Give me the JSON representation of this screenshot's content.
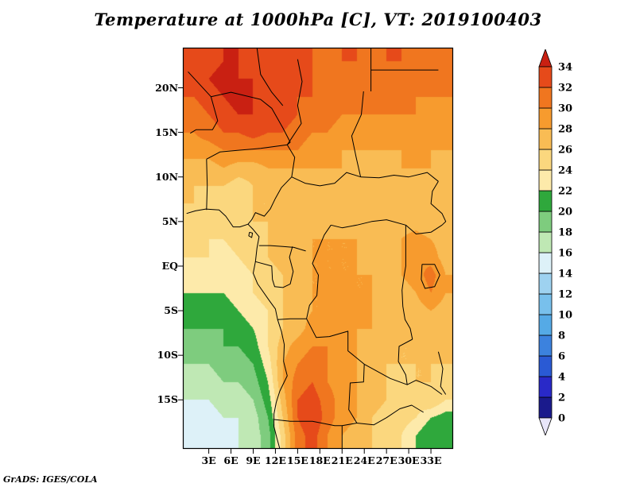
{
  "title": "Temperature at 1000hPa [C], VT: 2019100403",
  "credit": "GrADS: IGES/COLA",
  "axes": {
    "lat_ticks": [
      {
        "label": "20N",
        "lat": 20
      },
      {
        "label": "15N",
        "lat": 15
      },
      {
        "label": "10N",
        "lat": 10
      },
      {
        "label": "5N",
        "lat": 5
      },
      {
        "label": "EQ",
        "lat": 0
      },
      {
        "label": "5S",
        "lat": -5
      },
      {
        "label": "10S",
        "lat": -10
      },
      {
        "label": "15S",
        "lat": -15
      }
    ],
    "lon_ticks": [
      {
        "label": "3E",
        "lon": 3
      },
      {
        "label": "6E",
        "lon": 6
      },
      {
        "label": "9E",
        "lon": 9
      },
      {
        "label": "12E",
        "lon": 12
      },
      {
        "label": "15E",
        "lon": 15
      },
      {
        "label": "18E",
        "lon": 18
      },
      {
        "label": "21E",
        "lon": 21
      },
      {
        "label": "24E",
        "lon": 24
      },
      {
        "label": "27E",
        "lon": 27
      },
      {
        "label": "30E",
        "lon": 30
      },
      {
        "label": "33E",
        "lon": 33
      }
    ]
  },
  "chart_data": {
    "type": "heatmap",
    "title": "Temperature at 1000hPa [C], VT: 2019100403",
    "units": "C",
    "contour_interval": 2,
    "levels": [
      0,
      2,
      4,
      6,
      8,
      10,
      12,
      14,
      16,
      18,
      20,
      22,
      24,
      26,
      28,
      30,
      32,
      34
    ],
    "palette": {
      "under": "#e8e6fa",
      "bands": [
        "#1a1a8c",
        "#2929c8",
        "#2a5ad4",
        "#3c82de",
        "#55aae6",
        "#78c0ec",
        "#9ed2f0",
        "#ddf1f8",
        "#bfe8b4",
        "#7ecc7e",
        "#2fa83c",
        "#fdeaaa",
        "#fbd77e",
        "#f9bc54",
        "#f79b2e",
        "#f0761f",
        "#e64a1a"
      ],
      "over": "#c92012"
    },
    "lon_range": [
      -0.5,
      36.0
    ],
    "lat_range": [
      -20.5,
      24.5
    ],
    "grid_lons": [
      1,
      3,
      5,
      7,
      9,
      11,
      13,
      15,
      17,
      19,
      21,
      23,
      25,
      27,
      29,
      31,
      33,
      35
    ],
    "grid_lats": [
      23,
      21,
      19,
      17,
      15,
      13,
      11,
      9,
      7,
      5,
      3,
      1,
      -1,
      -3,
      -5,
      -7,
      -9,
      -11,
      -13,
      -15,
      -17,
      -19
    ],
    "values": [
      [
        32,
        33,
        34,
        34,
        33,
        32,
        32,
        33,
        32,
        31,
        32,
        32,
        31,
        32,
        32,
        31,
        32,
        31
      ],
      [
        33,
        34,
        35,
        34,
        34,
        33,
        34,
        33,
        32,
        32,
        31,
        32,
        31,
        31,
        32,
        31,
        31,
        30
      ],
      [
        32,
        33,
        34,
        35,
        34,
        34,
        33,
        32,
        32,
        31,
        31,
        31,
        30,
        31,
        31,
        30,
        30,
        30
      ],
      [
        31,
        32,
        33,
        34,
        34,
        33,
        33,
        32,
        31,
        31,
        30,
        30,
        30,
        30,
        30,
        30,
        29,
        30
      ],
      [
        30,
        31,
        32,
        32,
        33,
        32,
        32,
        31,
        30,
        30,
        29,
        29,
        29,
        29,
        29,
        29,
        29,
        29
      ],
      [
        29,
        29,
        30,
        30,
        30,
        30,
        30,
        30,
        29,
        29,
        28,
        28,
        28,
        28,
        28,
        29,
        28,
        28
      ],
      [
        27,
        27,
        28,
        27,
        27,
        28,
        28,
        28,
        28,
        28,
        28,
        27,
        27,
        27,
        28,
        28,
        28,
        27
      ],
      [
        26,
        26,
        26,
        25,
        26,
        27,
        27,
        27,
        27,
        27,
        27,
        27,
        27,
        27,
        27,
        28,
        27,
        27
      ],
      [
        26,
        25,
        25,
        25,
        26,
        26,
        27,
        27,
        27,
        27,
        27,
        27,
        27,
        26,
        27,
        27,
        27,
        26
      ],
      [
        25,
        25,
        24,
        25,
        26,
        26,
        26,
        27,
        27,
        27,
        27,
        27,
        26,
        26,
        27,
        27,
        26,
        26
      ],
      [
        25,
        24,
        24,
        25,
        25,
        26,
        27,
        27,
        28,
        28,
        28,
        28,
        27,
        27,
        28,
        29,
        28,
        27
      ],
      [
        24,
        24,
        23,
        24,
        25,
        26,
        27,
        28,
        28,
        28,
        28,
        28,
        27,
        27,
        28,
        30,
        29,
        27
      ],
      [
        23,
        23,
        23,
        23,
        24,
        25,
        26,
        27,
        28,
        28,
        28,
        28,
        28,
        27,
        28,
        29,
        31,
        28
      ],
      [
        22,
        22,
        22,
        23,
        24,
        25,
        26,
        27,
        28,
        28,
        29,
        28,
        28,
        27,
        27,
        28,
        30,
        28
      ],
      [
        21,
        21,
        21,
        22,
        23,
        24,
        26,
        27,
        28,
        28,
        29,
        29,
        28,
        27,
        27,
        27,
        28,
        27
      ],
      [
        20,
        20,
        20,
        21,
        22,
        24,
        26,
        27,
        29,
        29,
        29,
        28,
        28,
        27,
        26,
        27,
        27,
        27
      ],
      [
        19,
        19,
        20,
        20,
        21,
        24,
        27,
        29,
        30,
        30,
        29,
        28,
        27,
        27,
        26,
        26,
        27,
        26
      ],
      [
        18,
        18,
        19,
        19,
        20,
        23,
        28,
        30,
        31,
        30,
        29,
        28,
        27,
        26,
        26,
        26,
        26,
        26
      ],
      [
        17,
        17,
        18,
        18,
        19,
        22,
        28,
        31,
        32,
        30,
        29,
        28,
        27,
        26,
        25,
        26,
        26,
        25
      ],
      [
        16,
        16,
        17,
        17,
        18,
        21,
        27,
        32,
        33,
        31,
        29,
        28,
        27,
        26,
        25,
        25,
        26,
        24
      ],
      [
        15,
        15,
        16,
        16,
        17,
        20,
        26,
        32,
        34,
        31,
        29,
        28,
        26,
        25,
        25,
        24,
        22,
        21
      ],
      [
        14,
        15,
        15,
        16,
        17,
        19,
        25,
        31,
        33,
        30,
        28,
        27,
        26,
        25,
        24,
        22,
        20,
        20
      ]
    ]
  },
  "overlays": {
    "coastline": [
      [
        0,
        5.9
      ],
      [
        1.2,
        6.2
      ],
      [
        2.6,
        6.4
      ],
      [
        4.4,
        6.3
      ],
      [
        5.3,
        5.6
      ],
      [
        6.3,
        4.4
      ],
      [
        7.2,
        4.4
      ],
      [
        8.3,
        4.7
      ],
      [
        9.0,
        4.1
      ],
      [
        9.8,
        3.3
      ],
      [
        9.5,
        2.0
      ],
      [
        9.3,
        0.5
      ],
      [
        9.0,
        -0.8
      ],
      [
        9.6,
        -2.0
      ],
      [
        11.2,
        -3.9
      ],
      [
        12.0,
        -4.8
      ],
      [
        12.3,
        -6.0
      ],
      [
        12.8,
        -7.3
      ],
      [
        13.2,
        -8.8
      ],
      [
        13.1,
        -10.7
      ],
      [
        13.6,
        -12.3
      ],
      [
        12.6,
        -14.0
      ],
      [
        12.1,
        -15.3
      ],
      [
        11.8,
        -16.6
      ],
      [
        11.8,
        -18.0
      ],
      [
        12.2,
        -19.3
      ],
      [
        12.6,
        -20.5
      ]
    ],
    "borders": [
      [
        [
          2.7,
          6.3
        ],
        [
          2.8,
          9.0
        ],
        [
          2.7,
          12.0
        ]
      ],
      [
        [
          2.7,
          12.0
        ],
        [
          4.5,
          12.8
        ],
        [
          7.0,
          13.0
        ],
        [
          10.0,
          13.2
        ],
        [
          13.6,
          13.6
        ]
      ],
      [
        [
          13.6,
          13.6
        ],
        [
          14.6,
          12.2
        ],
        [
          14.2,
          10.0
        ],
        [
          12.8,
          8.8
        ],
        [
          12.0,
          7.6
        ],
        [
          11.3,
          6.4
        ],
        [
          10.5,
          5.6
        ],
        [
          9.3,
          6.0
        ],
        [
          8.8,
          5.2
        ],
        [
          8.3,
          4.7
        ]
      ],
      [
        [
          13.6,
          13.6
        ],
        [
          15.5,
          16.0
        ],
        [
          15.0,
          18.0
        ],
        [
          15.6,
          20.7
        ],
        [
          15.0,
          23.2
        ]
      ],
      [
        [
          23.9,
          19.6
        ],
        [
          23.6,
          17.0
        ],
        [
          22.3,
          14.6
        ],
        [
          22.9,
          12.2
        ],
        [
          23.5,
          10.0
        ]
      ],
      [
        [
          14.2,
          10.0
        ],
        [
          16.0,
          9.3
        ],
        [
          18.0,
          9.0
        ],
        [
          20.0,
          9.3
        ],
        [
          21.6,
          10.5
        ],
        [
          23.5,
          10.0
        ]
      ],
      [
        [
          9.8,
          2.3
        ],
        [
          11.3,
          2.3
        ],
        [
          13.0,
          2.2
        ],
        [
          14.5,
          2.1
        ],
        [
          16.1,
          1.7
        ]
      ],
      [
        [
          9.3,
          0.5
        ],
        [
          11.5,
          0.0
        ],
        [
          11.6,
          -1.5
        ],
        [
          11.9,
          -2.3
        ],
        [
          13.0,
          -2.4
        ],
        [
          14.0,
          -2.0
        ],
        [
          14.4,
          -0.6
        ],
        [
          13.9,
          1.0
        ],
        [
          14.3,
          2.2
        ]
      ],
      [
        [
          12.3,
          -6.0
        ],
        [
          14.0,
          -5.9
        ],
        [
          16.2,
          -5.9
        ],
        [
          16.6,
          -4.4
        ],
        [
          17.6,
          -3.3
        ],
        [
          17.8,
          -1.0
        ],
        [
          17.0,
          0.3
        ],
        [
          18.0,
          2.3
        ],
        [
          18.6,
          3.5
        ],
        [
          19.5,
          4.6
        ]
      ],
      [
        [
          19.5,
          4.6
        ],
        [
          21.0,
          4.3
        ],
        [
          23.0,
          4.6
        ],
        [
          25.0,
          5.0
        ],
        [
          27.0,
          5.2
        ],
        [
          29.6,
          4.6
        ]
      ],
      [
        [
          29.6,
          4.6
        ],
        [
          29.6,
          2.0
        ],
        [
          29.6,
          0.0
        ],
        [
          29.3,
          -1.5
        ],
        [
          29.1,
          -2.7
        ],
        [
          29.2,
          -4.5
        ],
        [
          29.5,
          -6.0
        ],
        [
          30.2,
          -7.0
        ],
        [
          30.5,
          -8.2
        ]
      ],
      [
        [
          30.5,
          -8.2
        ],
        [
          28.7,
          -9.0
        ],
        [
          28.6,
          -10.7
        ],
        [
          29.6,
          -12.2
        ],
        [
          29.8,
          -13.3
        ],
        [
          27.5,
          -12.6
        ],
        [
          25.3,
          -11.6
        ],
        [
          24.0,
          -11.0
        ]
      ],
      [
        [
          16.2,
          -5.9
        ],
        [
          17.5,
          -8.0
        ],
        [
          19.3,
          -7.9
        ],
        [
          21.8,
          -7.3
        ],
        [
          21.8,
          -9.5
        ],
        [
          24.0,
          -11.0
        ]
      ],
      [
        [
          24.0,
          -11.0
        ],
        [
          23.9,
          -13.0
        ],
        [
          22.1,
          -13.1
        ],
        [
          21.9,
          -16.1
        ],
        [
          23.0,
          -17.6
        ]
      ],
      [
        [
          11.8,
          -17.2
        ],
        [
          14.0,
          -17.4
        ],
        [
          17.0,
          -17.4
        ],
        [
          20.0,
          -17.9
        ],
        [
          21.0,
          -17.9
        ],
        [
          23.0,
          -17.6
        ]
      ],
      [
        [
          21.0,
          -17.9
        ],
        [
          21.0,
          -20.5
        ]
      ],
      [
        [
          23.0,
          -17.6
        ],
        [
          25.3,
          -17.8
        ],
        [
          27.0,
          -17.0
        ],
        [
          28.8,
          -16.0
        ],
        [
          30.4,
          -15.6
        ],
        [
          32.0,
          -16.4
        ]
      ],
      [
        [
          24.9,
          24.5
        ],
        [
          24.9,
          19.6
        ]
      ],
      [
        [
          24.9,
          22.0
        ],
        [
          34.0,
          22.0
        ]
      ],
      [
        [
          29.6,
          4.6
        ],
        [
          31.0,
          3.6
        ],
        [
          33.0,
          3.8
        ],
        [
          34.5,
          4.6
        ]
      ],
      [
        [
          31.8,
          0.2
        ],
        [
          33.5,
          0.2
        ],
        [
          34.2,
          -1.0
        ],
        [
          33.5,
          -2.3
        ],
        [
          32.2,
          -2.5
        ],
        [
          31.7,
          -1.5
        ],
        [
          31.8,
          0.2
        ]
      ],
      [
        [
          29.8,
          -13.3
        ],
        [
          31.0,
          -12.8
        ],
        [
          33.0,
          -13.5
        ],
        [
          34.5,
          -14.4
        ]
      ],
      [
        [
          34.0,
          -9.6
        ],
        [
          34.6,
          -11.5
        ],
        [
          34.3,
          -13.5
        ],
        [
          35.0,
          -14.4
        ]
      ],
      [
        [
          23.5,
          10.0
        ],
        [
          26.0,
          9.9
        ],
        [
          28.0,
          10.2
        ],
        [
          30.0,
          10.0
        ],
        [
          32.5,
          10.5
        ],
        [
          34.0,
          9.5
        ]
      ],
      [
        [
          34.0,
          9.5
        ],
        [
          33.2,
          8.4
        ],
        [
          33.0,
          7.0
        ],
        [
          34.5,
          5.9
        ],
        [
          35.0,
          5.0
        ],
        [
          34.5,
          4.6
        ]
      ],
      [
        [
          3.3,
          19.0
        ],
        [
          6.0,
          19.5
        ],
        [
          10.0,
          18.7
        ],
        [
          11.5,
          17.7
        ],
        [
          13.0,
          15.5
        ],
        [
          14.0,
          13.9
        ],
        [
          13.6,
          13.6
        ]
      ],
      [
        [
          9.5,
          24.5
        ],
        [
          10.0,
          21.5
        ],
        [
          11.5,
          19.5
        ],
        [
          13.0,
          18.0
        ]
      ],
      [
        [
          0.2,
          21.8
        ],
        [
          3.3,
          19.0
        ]
      ],
      [
        [
          3.3,
          19.0
        ],
        [
          4.2,
          16.3
        ],
        [
          3.5,
          15.3
        ],
        [
          1.3,
          15.3
        ],
        [
          0.5,
          14.9
        ]
      ],
      [
        [
          8.5,
          3.8
        ],
        [
          8.9,
          3.7
        ],
        [
          8.8,
          3.2
        ],
        [
          8.4,
          3.4
        ],
        [
          8.5,
          3.8
        ]
      ]
    ]
  }
}
